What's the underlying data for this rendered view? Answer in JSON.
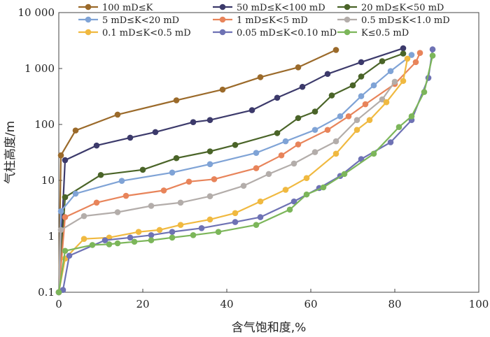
{
  "chart_data": {
    "type": "line",
    "title": "",
    "xlabel": "含气饱和度,%",
    "ylabel": "气柱高度/m",
    "xlim": [
      0,
      100
    ],
    "ylim": [
      0.1,
      10000
    ],
    "yscale": "log",
    "grid": false,
    "legend_placement": "top",
    "x_ticks": [
      "0",
      "20",
      "40",
      "60",
      "80",
      "100"
    ],
    "y_ticks": [
      "0.1",
      "1",
      "10",
      "100",
      "1 000",
      "10 000"
    ],
    "series": [
      {
        "name": "100 mD≤K",
        "color": "#9b6a2a",
        "x": [
          0,
          0.5,
          4,
          14,
          28,
          39,
          48,
          57,
          66
        ],
        "y": [
          0.1,
          28,
          78,
          150,
          270,
          420,
          700,
          1050,
          2150
        ]
      },
      {
        "name": "50 mD≤K<100 mD",
        "color": "#3c3a6b",
        "x": [
          0,
          1.5,
          9,
          17,
          23,
          32,
          36,
          46,
          52,
          58,
          64,
          72,
          82
        ],
        "y": [
          0.1,
          23,
          42,
          58,
          73,
          110,
          120,
          180,
          300,
          470,
          800,
          1300,
          2300
        ]
      },
      {
        "name": "20 mD≤K<50 mD",
        "color": "#4a6428",
        "x": [
          0,
          1.5,
          10,
          20,
          28,
          36,
          42,
          52,
          57,
          61,
          65,
          70,
          72,
          77,
          82
        ],
        "y": [
          0.1,
          5,
          12.5,
          15.5,
          25,
          33,
          43,
          70,
          130,
          170,
          330,
          500,
          720,
          1350,
          1850
        ]
      },
      {
        "name": "5 mD≤K<20 mD",
        "color": "#7fa3d6",
        "x": [
          0,
          0.5,
          4,
          15,
          27,
          36,
          47,
          54,
          61,
          67,
          72,
          75,
          79,
          84
        ],
        "y": [
          0.1,
          2.8,
          5.8,
          9.8,
          13.8,
          19.5,
          31,
          50,
          80,
          140,
          320,
          500,
          900,
          1750
        ]
      },
      {
        "name": "1 mD≤K<5 mD",
        "color": "#e8845a",
        "x": [
          0,
          1.5,
          9,
          16,
          25,
          31,
          37,
          47,
          53,
          57,
          64,
          69,
          73,
          80,
          85,
          86
        ],
        "y": [
          0.1,
          2.2,
          4,
          5.3,
          6.6,
          9.5,
          10.5,
          16.5,
          28,
          44,
          80,
          140,
          230,
          530,
          1300,
          1900
        ]
      },
      {
        "name": "0.5 mD≤K<1.0 mD",
        "color": "#b3adaa",
        "x": [
          0,
          0.5,
          6,
          14,
          22,
          29,
          36,
          44,
          50,
          56,
          61,
          66,
          71,
          77,
          80
        ],
        "y": [
          0.1,
          1.3,
          2.3,
          2.7,
          3.5,
          4,
          5.2,
          8,
          13,
          20,
          32,
          50,
          120,
          280,
          580
        ]
      },
      {
        "name": "0.1 mD≤K<0.5 mD",
        "color": "#f0b940",
        "x": [
          0,
          1.5,
          6,
          12,
          19,
          24,
          29,
          36,
          42,
          48,
          54,
          59,
          66,
          71,
          74,
          78,
          82,
          83
        ],
        "y": [
          0.1,
          0.4,
          0.9,
          0.95,
          1.2,
          1.3,
          1.6,
          2,
          2.6,
          4.2,
          6.8,
          11,
          30,
          80,
          120,
          250,
          600,
          1500
        ]
      },
      {
        "name": "0.05 mD≤K<0.10 mD",
        "color": "#6e72b4",
        "x": [
          0,
          1,
          2.5,
          11,
          17,
          22,
          27,
          34,
          42,
          48,
          56,
          62,
          67,
          72,
          79,
          84,
          88,
          89
        ],
        "y": [
          0.1,
          0.11,
          0.45,
          0.85,
          0.95,
          1.05,
          1.2,
          1.4,
          1.8,
          2.2,
          4.2,
          7.3,
          12,
          24,
          48,
          120,
          680,
          2200
        ]
      },
      {
        "name": "K≤0.5 mD",
        "color": "#7cb65a",
        "x": [
          0,
          1.5,
          8,
          12,
          14,
          18,
          22,
          27,
          32,
          38,
          47,
          55,
          59,
          63,
          68,
          75,
          81,
          84,
          87,
          89
        ],
        "y": [
          0.1,
          0.55,
          0.7,
          0.72,
          0.75,
          0.8,
          0.85,
          0.95,
          1.05,
          1.2,
          1.6,
          3,
          5.6,
          7.5,
          13,
          30,
          90,
          140,
          380,
          1700
        ]
      }
    ]
  }
}
